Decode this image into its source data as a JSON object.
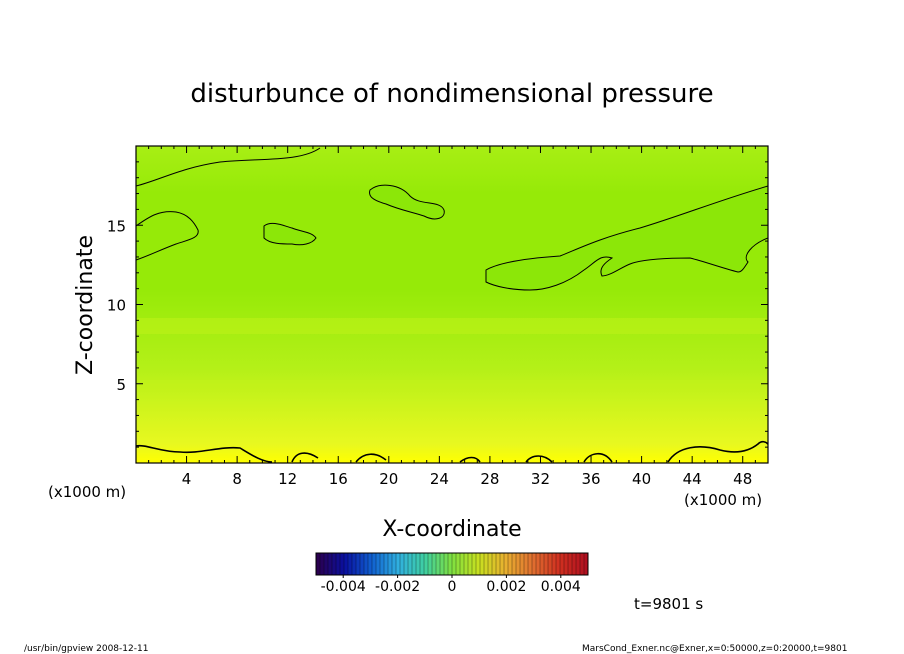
{
  "chart_data": {
    "type": "heatmap",
    "title": "disturbunce of nondimensional pressure",
    "xlabel": "X-coordinate",
    "ylabel": "Z-coordinate",
    "x_unit_left": "(x1000 m)",
    "x_unit_right": "(x1000 m)",
    "x_ticks": [
      4,
      8,
      12,
      16,
      20,
      24,
      28,
      32,
      36,
      40,
      44,
      48
    ],
    "y_ticks": [
      5,
      10,
      15
    ],
    "xlim": [
      0,
      50
    ],
    "ylim": [
      0,
      20
    ],
    "colorbar": {
      "ticks": [
        "-0.004",
        "-0.002",
        "0",
        "0.002",
        "0.004"
      ],
      "tick_values": [
        -0.004,
        -0.002,
        0,
        0.002,
        0.004
      ],
      "range": [
        -0.005,
        0.005
      ],
      "colors": [
        "#2a0050",
        "#0a10a0",
        "#1060d0",
        "#30b0e0",
        "#40d0a0",
        "#80e040",
        "#c8e020",
        "#e8b030",
        "#e07030",
        "#d03020",
        "#b01020"
      ]
    },
    "time_label": "t=9801 s",
    "field_colors": {
      "bottom": "#ffff00",
      "low": "#e8f820",
      "mid": "#b4f018",
      "upper": "#96ea08",
      "top": "#a8ee14",
      "band": "#c6f41a",
      "contour_region": "#88e608"
    }
  },
  "footer": {
    "left": "/usr/bin/gpview   2008-12-11",
    "right": "MarsCond_Exner.nc@Exner,x=0:50000,z=0:20000,t=9801"
  }
}
